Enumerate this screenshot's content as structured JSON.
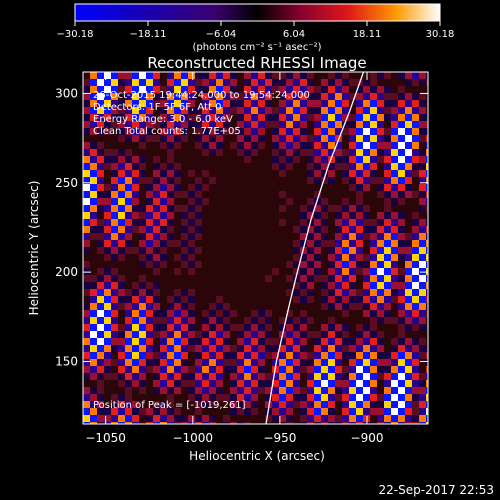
{
  "chart_data": {
    "type": "heatmap",
    "title": "Reconstructed RHESSI Image",
    "xlabel": "Heliocentric X (arcsec)",
    "ylabel": "Heliocentric Y (arcsec)",
    "xlim": [
      -1063,
      -865
    ],
    "ylim": [
      115,
      312
    ],
    "x_ticks": [
      -1050,
      -1000,
      -950,
      -900
    ],
    "y_ticks": [
      150,
      200,
      250,
      300
    ],
    "x_tick_labels": [
      "−1050",
      "−1000",
      "−950",
      "−900"
    ],
    "y_tick_labels": [
      "150",
      "200",
      "250",
      "300"
    ],
    "colorbar": {
      "min": -30.18,
      "max": 30.18,
      "ticks": [
        -30.18,
        -18.11,
        -6.04,
        6.04,
        18.11,
        30.18
      ],
      "tick_labels": [
        "−30.18",
        "−18.11",
        "−6.04",
        "6.04",
        "18.11",
        "30.18"
      ],
      "unit_label": "(photons cm⁻² s⁻¹ asec⁻²)"
    },
    "annotations": [
      "26-Oct-2015 19:44:24.000 to 19:54:24.000",
      "Detectors: 1F 5F 6F, Att 0",
      "Energy Range: 3.0 - 6.0 keV",
      "Clean    Total counts: 1.77E+05"
    ],
    "peak_label": "Position of Peak = [-1019,261]",
    "peak_position": [
      -1019,
      261
    ],
    "limb_curve": [
      [
        -958,
        115
      ],
      [
        -952,
        150
      ],
      [
        -945,
        180
      ],
      [
        -940,
        200
      ],
      [
        -932,
        230
      ],
      [
        -922,
        260
      ],
      [
        -910,
        290
      ],
      [
        -902,
        312
      ]
    ]
  },
  "footer": {
    "timestamp": "22-Sep-2017 22:53"
  }
}
